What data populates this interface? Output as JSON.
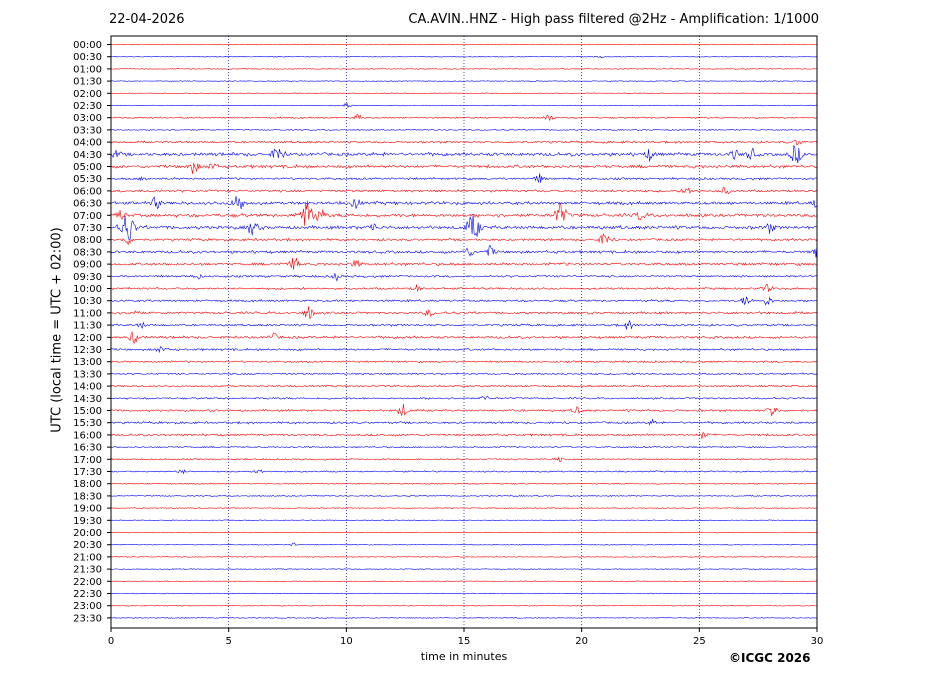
{
  "header": {
    "date": "22-04-2026",
    "title": "CA.AVIN..HNZ - High pass filtered @2Hz - Amplification: 1/1000"
  },
  "footer": {
    "credit": "©ICGC 2026"
  },
  "chart_data": {
    "type": "line",
    "title": "CA.AVIN..HNZ - High pass filtered @2Hz - Amplification: 1/1000",
    "xlabel": "time in minutes",
    "ylabel": "UTC (local time = UTC + 02:00)",
    "xlim": [
      0,
      30
    ],
    "xticks": [
      0,
      5,
      10,
      15,
      20,
      25,
      30
    ],
    "vertical_grid_minutes": [
      5,
      10,
      15,
      20,
      25
    ],
    "trace_colors": [
      "#ff0000",
      "#0000ff"
    ],
    "rows": [
      "00:00",
      "00:30",
      "01:00",
      "01:30",
      "02:00",
      "02:30",
      "03:00",
      "03:30",
      "04:00",
      "04:30",
      "05:00",
      "05:30",
      "06:00",
      "06:30",
      "07:00",
      "07:30",
      "08:00",
      "08:30",
      "09:00",
      "09:30",
      "10:00",
      "10:30",
      "11:00",
      "11:30",
      "12:00",
      "12:30",
      "13:00",
      "13:30",
      "14:00",
      "14:30",
      "15:00",
      "15:30",
      "16:00",
      "16:30",
      "17:00",
      "17:30",
      "18:00",
      "18:30",
      "19:00",
      "19:30",
      "20:00",
      "20:30",
      "21:00",
      "21:30",
      "22:00",
      "22:30",
      "23:00",
      "23:30"
    ],
    "activity_level": [
      0.1,
      0.1,
      0.1,
      0.1,
      0.1,
      0.1,
      0.3,
      0.2,
      0.5,
      0.9,
      0.8,
      0.5,
      0.6,
      0.8,
      0.9,
      0.9,
      0.6,
      0.7,
      0.7,
      0.5,
      0.5,
      0.5,
      0.6,
      0.5,
      0.6,
      0.5,
      0.4,
      0.4,
      0.4,
      0.4,
      0.5,
      0.5,
      0.5,
      0.3,
      0.3,
      0.3,
      0.2,
      0.2,
      0.1,
      0.1,
      0.1,
      0.1,
      0.1,
      0.1,
      0.1,
      0.1,
      0.1,
      0.1
    ],
    "events": [
      {
        "row": "00:30",
        "minute": 20.8,
        "amplitude": 0.1
      },
      {
        "row": "02:30",
        "minute": 10.0,
        "amplitude": 0.3
      },
      {
        "row": "03:00",
        "minute": 10.5,
        "amplitude": 0.35
      },
      {
        "row": "03:00",
        "minute": 18.6,
        "amplitude": 0.45
      },
      {
        "row": "04:00",
        "minute": 29.2,
        "amplitude": 0.35
      },
      {
        "row": "04:30",
        "minute": 0.2,
        "amplitude": 0.4
      },
      {
        "row": "04:30",
        "minute": 7.1,
        "amplitude": 0.9
      },
      {
        "row": "04:30",
        "minute": 22.9,
        "amplitude": 0.6
      },
      {
        "row": "04:30",
        "minute": 26.5,
        "amplitude": 0.5
      },
      {
        "row": "04:30",
        "minute": 27.2,
        "amplitude": 0.6
      },
      {
        "row": "04:30",
        "minute": 29.1,
        "amplitude": 1.0
      },
      {
        "row": "05:00",
        "minute": 3.5,
        "amplitude": 0.7
      },
      {
        "row": "05:00",
        "minute": 4.3,
        "amplitude": 0.4
      },
      {
        "row": "05:30",
        "minute": 1.4,
        "amplitude": 0.3
      },
      {
        "row": "05:30",
        "minute": 18.2,
        "amplitude": 0.5
      },
      {
        "row": "06:00",
        "minute": 24.5,
        "amplitude": 0.4
      },
      {
        "row": "06:00",
        "minute": 26.1,
        "amplitude": 0.4
      },
      {
        "row": "06:30",
        "minute": 1.9,
        "amplitude": 0.6
      },
      {
        "row": "06:30",
        "minute": 5.4,
        "amplitude": 1.0
      },
      {
        "row": "06:30",
        "minute": 10.4,
        "amplitude": 0.6
      },
      {
        "row": "06:30",
        "minute": 30.0,
        "amplitude": 0.5
      },
      {
        "row": "07:00",
        "minute": 0.4,
        "amplitude": 0.5
      },
      {
        "row": "07:00",
        "minute": 8.3,
        "amplitude": 1.6
      },
      {
        "row": "07:00",
        "minute": 8.9,
        "amplitude": 0.6
      },
      {
        "row": "07:00",
        "minute": 19.1,
        "amplitude": 1.2
      },
      {
        "row": "07:00",
        "minute": 22.5,
        "amplitude": 0.5
      },
      {
        "row": "07:30",
        "minute": 0.7,
        "amplitude": 1.6
      },
      {
        "row": "07:30",
        "minute": 6.0,
        "amplitude": 0.8
      },
      {
        "row": "07:30",
        "minute": 11.1,
        "amplitude": 0.5
      },
      {
        "row": "07:30",
        "minute": 15.4,
        "amplitude": 1.4
      },
      {
        "row": "07:30",
        "minute": 28.0,
        "amplitude": 0.5
      },
      {
        "row": "08:00",
        "minute": 0.7,
        "amplitude": 0.5
      },
      {
        "row": "08:00",
        "minute": 21.0,
        "amplitude": 0.8
      },
      {
        "row": "08:30",
        "minute": 15.2,
        "amplitude": 0.5
      },
      {
        "row": "08:30",
        "minute": 16.1,
        "amplitude": 0.6
      },
      {
        "row": "08:30",
        "minute": 30.0,
        "amplitude": 0.7
      },
      {
        "row": "09:00",
        "minute": 7.8,
        "amplitude": 0.7
      },
      {
        "row": "09:00",
        "minute": 10.4,
        "amplitude": 0.4
      },
      {
        "row": "09:30",
        "minute": 3.7,
        "amplitude": 0.3
      },
      {
        "row": "09:30",
        "minute": 9.6,
        "amplitude": 0.4
      },
      {
        "row": "10:00",
        "minute": 13.0,
        "amplitude": 0.4
      },
      {
        "row": "10:00",
        "minute": 27.9,
        "amplitude": 0.4
      },
      {
        "row": "10:30",
        "minute": 27.0,
        "amplitude": 0.6
      },
      {
        "row": "10:30",
        "minute": 27.9,
        "amplitude": 0.5
      },
      {
        "row": "11:00",
        "minute": 1.0,
        "amplitude": 0.4
      },
      {
        "row": "11:00",
        "minute": 8.4,
        "amplitude": 0.7
      },
      {
        "row": "11:00",
        "minute": 13.5,
        "amplitude": 0.4
      },
      {
        "row": "11:30",
        "minute": 1.3,
        "amplitude": 0.3
      },
      {
        "row": "11:30",
        "minute": 22.0,
        "amplitude": 0.5
      },
      {
        "row": "12:00",
        "minute": 1.0,
        "amplitude": 0.7
      },
      {
        "row": "12:00",
        "minute": 6.9,
        "amplitude": 0.4
      },
      {
        "row": "12:30",
        "minute": 2.1,
        "amplitude": 0.4
      },
      {
        "row": "14:30",
        "minute": 15.9,
        "amplitude": 0.3
      },
      {
        "row": "15:00",
        "minute": 12.4,
        "amplitude": 0.7
      },
      {
        "row": "15:00",
        "minute": 19.8,
        "amplitude": 0.4
      },
      {
        "row": "15:00",
        "minute": 28.1,
        "amplitude": 0.7
      },
      {
        "row": "15:30",
        "minute": 23.0,
        "amplitude": 0.3
      },
      {
        "row": "16:00",
        "minute": 25.2,
        "amplitude": 0.5
      },
      {
        "row": "17:00",
        "minute": 19.0,
        "amplitude": 0.3
      },
      {
        "row": "17:30",
        "minute": 3.0,
        "amplitude": 0.25
      },
      {
        "row": "17:30",
        "minute": 6.3,
        "amplitude": 0.25
      },
      {
        "row": "20:30",
        "minute": 7.8,
        "amplitude": 0.2
      }
    ]
  }
}
